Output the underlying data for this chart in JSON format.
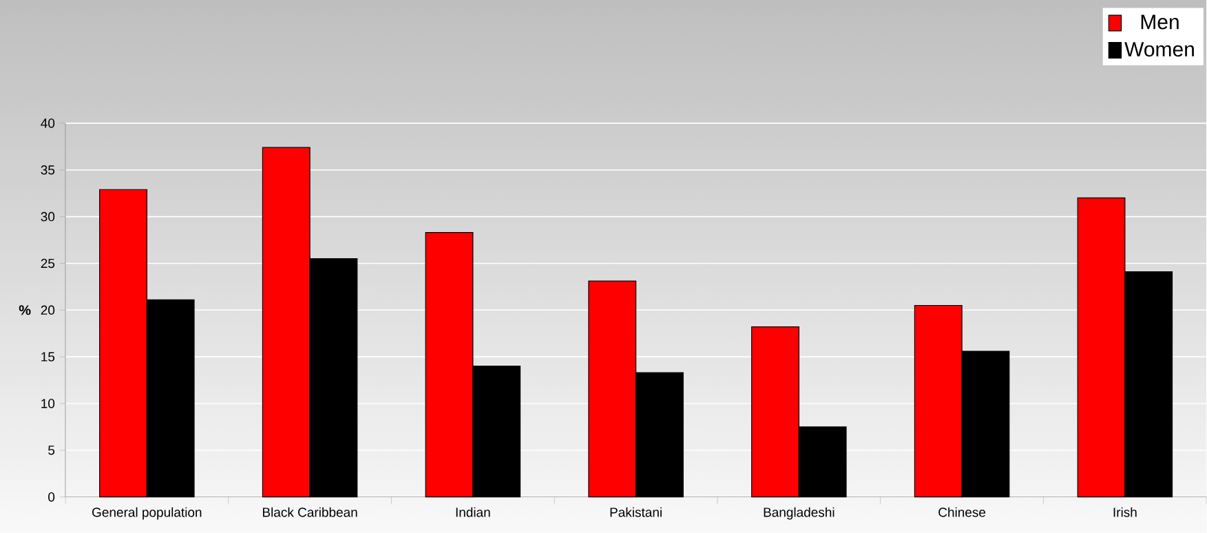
{
  "chart_data": {
    "type": "bar",
    "ylabel": "%",
    "categories": [
      "General population",
      "Black Caribbean",
      "Indian",
      "Pakistani",
      "Bangladeshi",
      "Chinese",
      "Irish"
    ],
    "series": [
      {
        "name": "Men",
        "color": "#ff0000",
        "values": [
          32.9,
          37.4,
          28.3,
          23.1,
          18.2,
          20.5,
          32.0
        ]
      },
      {
        "name": "Women",
        "color": "#000000",
        "values": [
          21.1,
          25.5,
          14.0,
          13.3,
          7.5,
          15.6,
          24.1
        ]
      }
    ],
    "ylim": [
      0,
      40
    ],
    "yticks": [
      0,
      5,
      10,
      15,
      20,
      25,
      30,
      35,
      40
    ],
    "grid": "y",
    "legend": "top right"
  }
}
